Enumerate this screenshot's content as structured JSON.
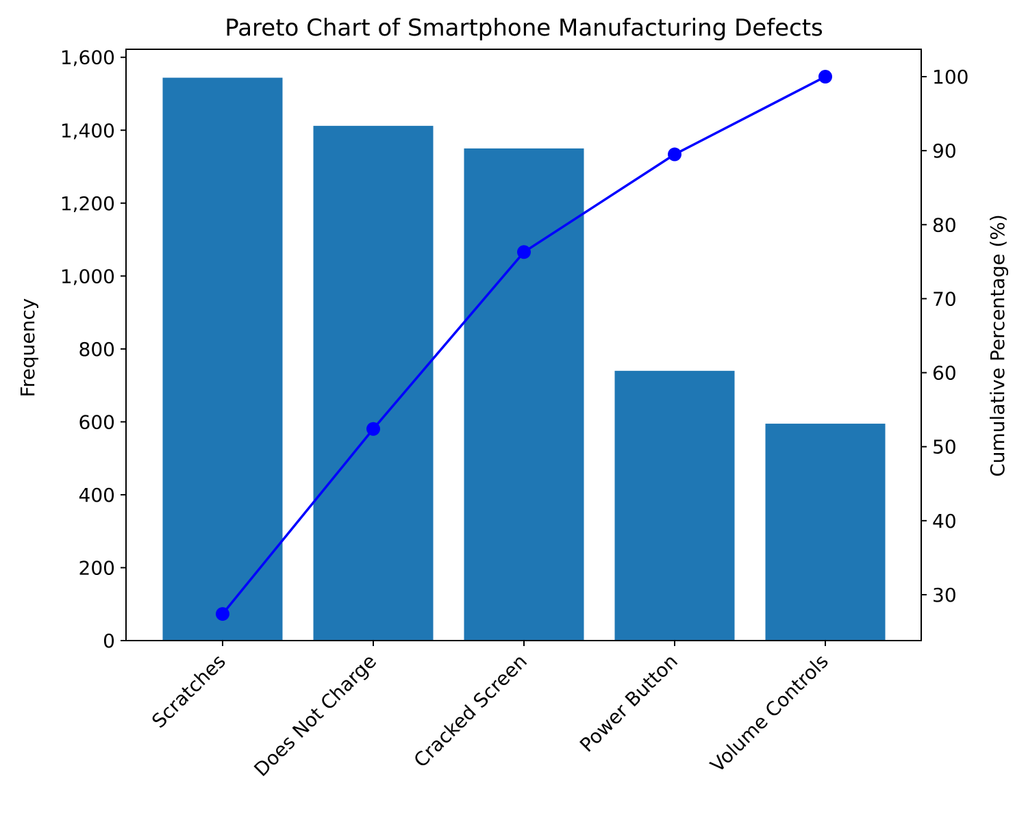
{
  "chart_data": {
    "type": "bar+line",
    "title": "Pareto Chart of Smartphone Manufacturing Defects",
    "xlabel": "",
    "ylabel": "Frequency",
    "y2label": "Cumulative Percentage (%)",
    "categories": [
      "Scratches",
      "Does Not Charge",
      "Cracked Screen",
      "Power Button",
      "Volume Controls"
    ],
    "values": [
      1544,
      1412,
      1350,
      740,
      595
    ],
    "cumulative_percent": [
      27.4,
      52.4,
      76.3,
      89.5,
      100.0
    ],
    "ylim": [
      0,
      1622
    ],
    "y2lim": [
      23.8,
      103.7
    ],
    "yticks": [
      "0",
      "200",
      "400",
      "600",
      "800",
      "1,000",
      "1,200",
      "1,400",
      "1,600"
    ],
    "y2ticks": [
      "30",
      "40",
      "50",
      "60",
      "70",
      "80",
      "90",
      "100"
    ],
    "grid": false,
    "colors": {
      "bars": "#1f77b4",
      "line": "#0000ff"
    }
  }
}
